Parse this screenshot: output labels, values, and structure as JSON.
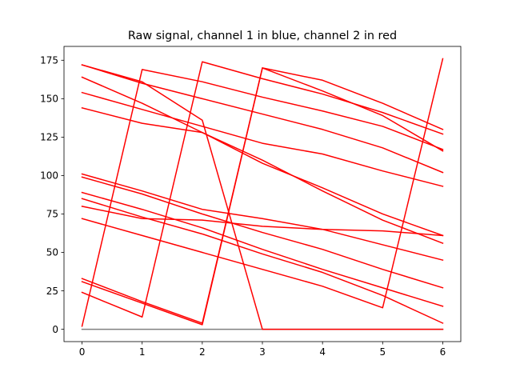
{
  "chart_data": {
    "type": "line",
    "title": "Raw signal, channel 1 in blue, channel 2 in red",
    "xlabel": "",
    "ylabel": "",
    "xlim": [
      -0.3,
      6.3
    ],
    "ylim": [
      -8,
      184
    ],
    "xticks": [
      0,
      1,
      2,
      3,
      4,
      5,
      6
    ],
    "yticks": [
      0,
      25,
      50,
      75,
      100,
      125,
      150,
      175
    ],
    "grid": false,
    "legend": "none",
    "colors": {
      "channel1": "#1f77b4",
      "channel2": "#ff0000",
      "baseline": "#808080"
    },
    "x": [
      0,
      1,
      2,
      3,
      4,
      5,
      6
    ],
    "series": [
      {
        "color": "#808080",
        "values": [
          0,
          0,
          0,
          0,
          0,
          0,
          0
        ]
      },
      {
        "color": "#ff0000",
        "values": [
          172,
          160,
          150,
          140,
          130,
          118,
          102
        ]
      },
      {
        "color": "#ff0000",
        "values": [
          154,
          143,
          132,
          121,
          114,
          103,
          93
        ]
      },
      {
        "color": "#ff0000",
        "values": [
          144,
          134,
          128,
          108,
          92,
          75,
          61
        ]
      },
      {
        "color": "#ff0000",
        "values": [
          164,
          147,
          128,
          110,
          90,
          71,
          56
        ]
      },
      {
        "color": "#ff0000",
        "values": [
          101,
          90,
          78,
          72,
          65,
          55,
          45
        ]
      },
      {
        "color": "#ff0000",
        "values": [
          99,
          88,
          75,
          63,
          52,
          39,
          27
        ]
      },
      {
        "color": "#ff0000",
        "values": [
          89,
          78,
          66,
          52,
          39,
          27,
          15
        ]
      },
      {
        "color": "#ff0000",
        "values": [
          85,
          73,
          62,
          49,
          37,
          22,
          4
        ]
      },
      {
        "color": "#ff0000",
        "values": [
          80,
          72,
          71,
          67,
          65,
          64,
          61
        ]
      },
      {
        "color": "#ff0000",
        "values": [
          72,
          61,
          50,
          39,
          28,
          14,
          176
        ]
      },
      {
        "color": "#ff0000",
        "values": [
          33,
          18,
          4,
          170,
          155,
          139,
          116
        ]
      },
      {
        "color": "#ff0000",
        "values": [
          31,
          17,
          3,
          170,
          162,
          147,
          130
        ]
      },
      {
        "color": "#ff0000",
        "values": [
          24,
          8,
          174,
          163,
          153,
          141,
          127
        ]
      },
      {
        "color": "#ff0000",
        "values": [
          2,
          169,
          161,
          151,
          142,
          132,
          117
        ]
      },
      {
        "color": "#ff0000",
        "values": [
          172,
          161,
          136,
          0,
          0,
          0,
          0
        ]
      }
    ]
  }
}
